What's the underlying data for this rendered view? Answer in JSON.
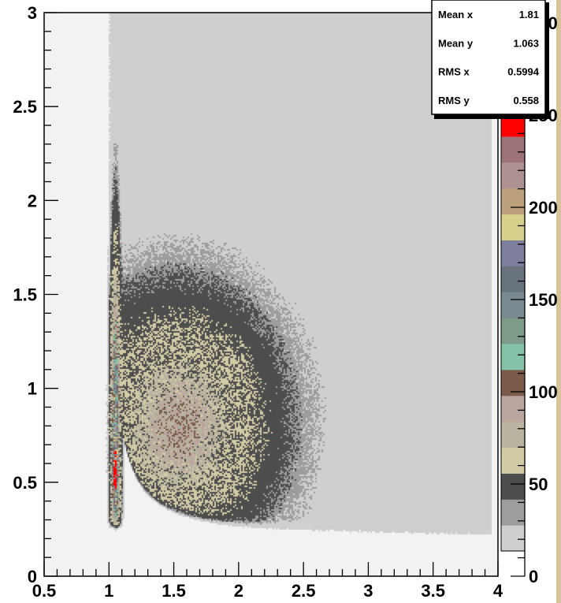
{
  "chart_data": {
    "type": "heatmap",
    "title": "",
    "xlabel": "",
    "ylabel": "",
    "xlim": [
      0.5,
      4
    ],
    "ylim": [
      0,
      3
    ],
    "x_ticks": [
      "0.5",
      "1",
      "1.5",
      "2",
      "2.5",
      "3",
      "3.5",
      "4"
    ],
    "y_ticks": [
      "0",
      "0.5",
      "1",
      "1.5",
      "2",
      "2.5",
      "3"
    ],
    "z_ticks": [
      "0",
      "50",
      "100",
      "150",
      "200",
      "250",
      "300"
    ],
    "zlim": [
      0,
      300
    ],
    "palette": [
      "#cfcfcf",
      "#9d9d9d",
      "#4d4d4d",
      "#d2cca6",
      "#b9b5a0",
      "#bba69f",
      "#7b5b4b",
      "#85c3a9",
      "#7e9b89",
      "#798a90",
      "#68737e",
      "#7e7f9f",
      "#d8d18e",
      "#bc9f7b",
      "#ae9191",
      "#9c7376",
      "#ff0000"
    ],
    "grid": false,
    "stats": [
      {
        "label": "Mean x",
        "value": "1.81"
      },
      {
        "label": "Mean y",
        "value": "1.063"
      },
      {
        "label": "RMS x",
        "value": "0.5994"
      },
      {
        "label": "RMS y",
        "value": "0.558"
      }
    ]
  }
}
